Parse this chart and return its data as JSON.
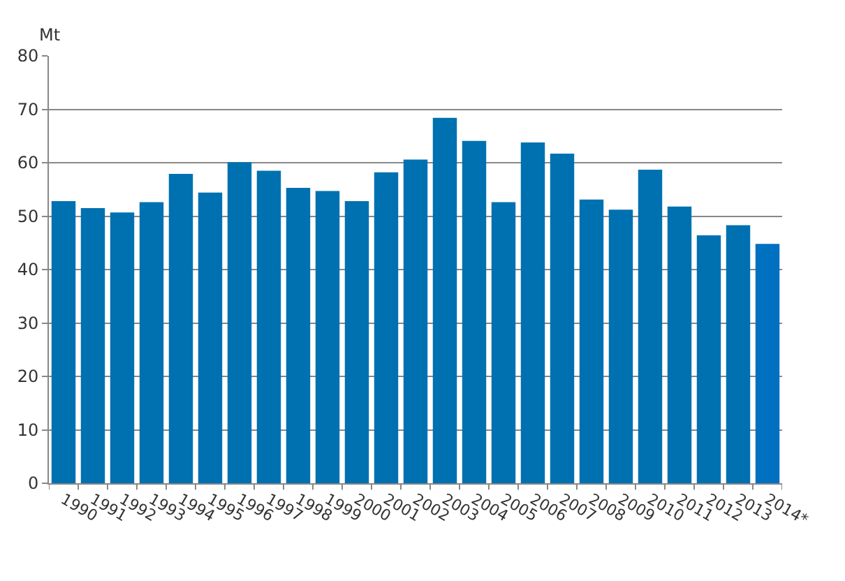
{
  "chart_data": {
    "type": "bar",
    "ylabel": "Mt",
    "categories": [
      "1990",
      "1991",
      "1992",
      "1993",
      "1994",
      "1995",
      "1996",
      "1997",
      "1998",
      "1999",
      "2000",
      "2001",
      "2002",
      "2003",
      "2004",
      "2005",
      "2006",
      "2007",
      "2008",
      "2009",
      "2010",
      "2011",
      "2012",
      "2013",
      "2014*"
    ],
    "values": [
      52.8,
      51.5,
      50.7,
      52.6,
      57.9,
      54.4,
      60.1,
      58.5,
      55.3,
      54.7,
      52.8,
      58.2,
      60.6,
      68.4,
      64.1,
      52.6,
      63.8,
      61.7,
      53.1,
      51.2,
      58.7,
      51.8,
      46.4,
      48.3,
      44.8
    ],
    "colors": [
      "#0071b0",
      "#0071b0",
      "#0071b0",
      "#0071b0",
      "#0071b0",
      "#0071b0",
      "#0071b0",
      "#0071b0",
      "#0071b0",
      "#0071b0",
      "#0071b0",
      "#0071b0",
      "#0071b0",
      "#0071b0",
      "#0071b0",
      "#0071b0",
      "#0071b0",
      "#0071b0",
      "#0071b0",
      "#0071b0",
      "#0071b0",
      "#0071b0",
      "#0071b0",
      "#0071b0",
      "#0070c0"
    ],
    "ylim": [
      0,
      80
    ],
    "yticks": [
      0,
      10,
      20,
      30,
      40,
      50,
      60,
      70,
      80
    ],
    "grid": "y"
  }
}
